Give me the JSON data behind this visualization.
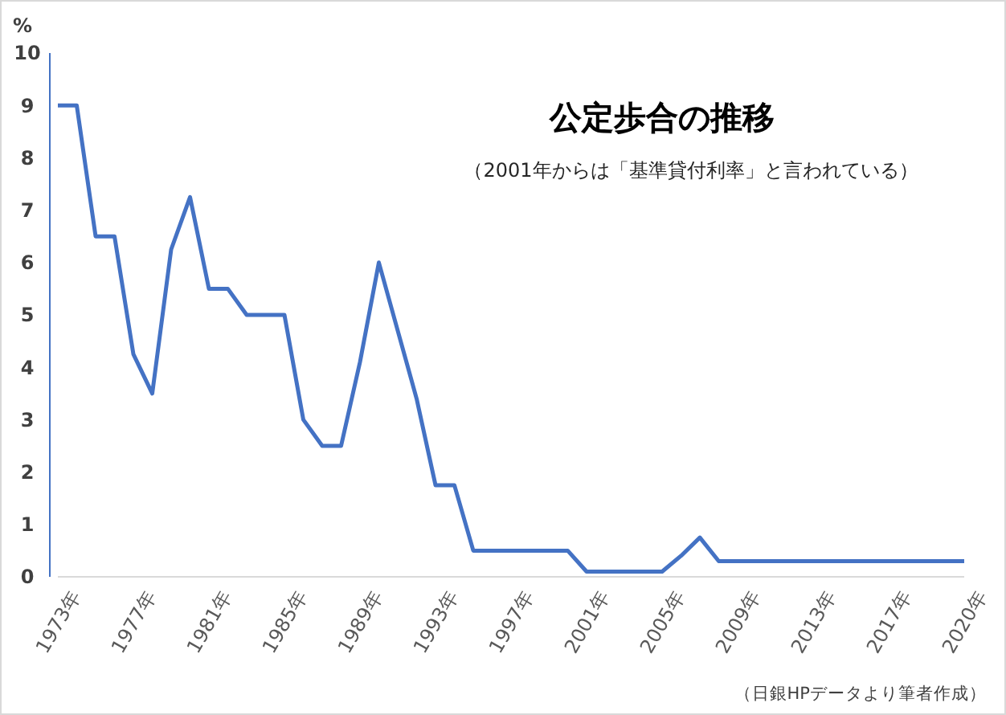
{
  "chart_data": {
    "type": "line",
    "title": "公定歩合の推移",
    "subtitle": "（2001年からは「基準貸付利率」と言われている）",
    "ylabel": "%",
    "annotations": [
      "（日銀HPデータより筆者作成）"
    ],
    "categories": [
      "1973年",
      null,
      null,
      null,
      "1977年",
      null,
      null,
      null,
      "1981年",
      null,
      null,
      null,
      "1985年",
      null,
      null,
      null,
      "1989年",
      null,
      null,
      null,
      "1993年",
      null,
      null,
      null,
      "1997年",
      null,
      null,
      null,
      "2001年",
      null,
      null,
      null,
      "2005年",
      null,
      null,
      null,
      "2009年",
      null,
      null,
      null,
      "2013年",
      null,
      null,
      null,
      "2017年",
      null,
      null,
      null,
      "2020年"
    ],
    "series": [
      {
        "color": "#4472c4",
        "values": [
          9,
          9,
          6.5,
          6.5,
          4.25,
          3.5,
          6.25,
          7.25,
          5.5,
          5.5,
          5,
          5,
          5,
          3,
          2.5,
          2.5,
          4.1,
          6,
          4.7,
          3.4,
          1.75,
          1.75,
          0.5,
          0.5,
          0.5,
          0.5,
          0.5,
          0.5,
          0.1,
          0.1,
          0.1,
          0.1,
          0.1,
          0.4,
          0.75,
          0.3,
          0.3,
          0.3,
          0.3,
          0.3,
          0.3,
          0.3,
          0.3,
          0.3,
          0.3,
          0.3,
          0.3,
          0.3,
          0.3
        ]
      }
    ],
    "ylim": [
      0,
      10
    ],
    "yticks": [
      0,
      1,
      2,
      3,
      4,
      5,
      6,
      7,
      8,
      9,
      10
    ],
    "grid": false,
    "marker": "none",
    "line_style": "solid"
  }
}
